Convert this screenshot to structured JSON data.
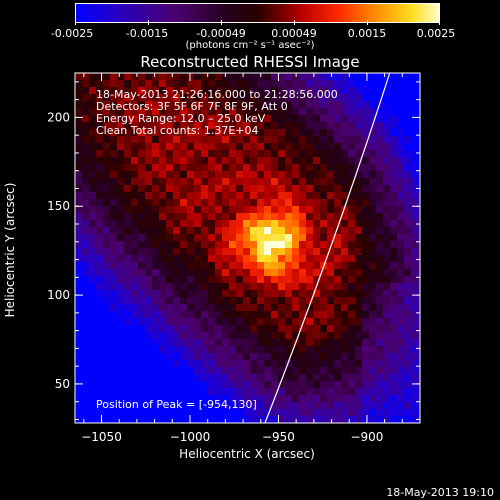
{
  "colorbar": {
    "ticks": [
      "-0.0025",
      "-0.0015",
      "-0.00049",
      "0.00049",
      "0.0015",
      "0.0025"
    ],
    "units": "(photons cm⁻² s⁻¹ asec⁻²)"
  },
  "chart_data": {
    "type": "heatmap",
    "title": "Reconstructed RHESSI Image",
    "xlabel": "Heliocentric X (arcsec)",
    "ylabel": "Heliocentric Y (arcsec)",
    "xlim": [
      -1065,
      -870
    ],
    "ylim": [
      28,
      225
    ],
    "xticks": [
      -1050,
      -1000,
      -950,
      -900
    ],
    "yticks": [
      50,
      100,
      150,
      200
    ],
    "xtick_labels": [
      "−1050",
      "−1000",
      "−950",
      "−900"
    ],
    "ytick_labels": [
      "50",
      "100",
      "150",
      "200"
    ],
    "colorbar_range": [
      -0.0025,
      0.0025
    ],
    "peak_position": [
      -954,
      130
    ],
    "limb_visible": true
  },
  "annotations": {
    "time_range": "18-May-2013 21:26:16.000 to 21:28:56.000",
    "detectors": "Detectors: 3F 5F 6F 7F 8F 9F, Att 0",
    "energy": "Energy Range: 12.0 – 25.0 keV",
    "clean": "Clean     Total counts: 1.37E+04",
    "peak": "Position of Peak = [-954,130]"
  },
  "footer": {
    "timestamp": "18-May-2013 19:10"
  }
}
